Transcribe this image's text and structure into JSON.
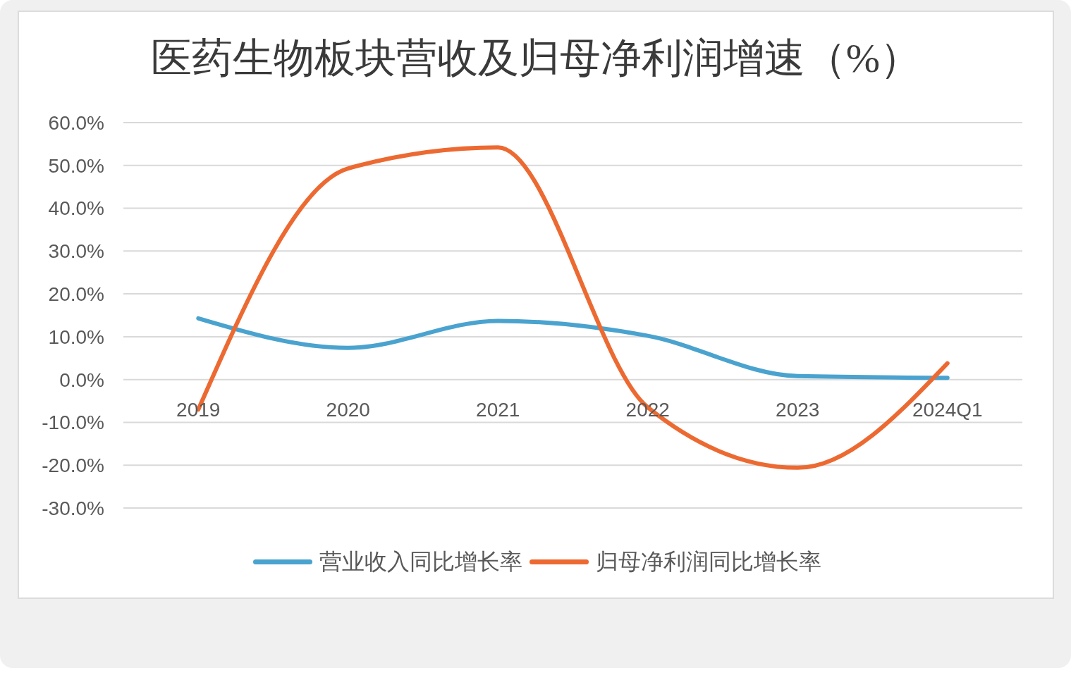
{
  "chart_data": {
    "type": "line",
    "title": "医药生物板块营收及归母净利润增速（%）",
    "categories": [
      "2019",
      "2020",
      "2021",
      "2022",
      "2023",
      "2024Q1"
    ],
    "series": [
      {
        "name": "营业收入同比增长率",
        "color": "#4aa3cf",
        "values": [
          14.3,
          7.4,
          13.7,
          10.2,
          0.8,
          0.4
        ]
      },
      {
        "name": "归母净利润同比增长率",
        "color": "#ec6a32",
        "values": [
          -7.0,
          49.3,
          54.2,
          -6.5,
          -20.6,
          3.8
        ]
      }
    ],
    "ylim": [
      -30,
      60
    ],
    "yticks": [
      {
        "value": -30,
        "label": "-30.0%"
      },
      {
        "value": -20,
        "label": "-20.0%"
      },
      {
        "value": -10,
        "label": "-10.0%"
      },
      {
        "value": 0,
        "label": "0.0%"
      },
      {
        "value": 10,
        "label": "10.0%"
      },
      {
        "value": 20,
        "label": "20.0%"
      },
      {
        "value": 30,
        "label": "30.0%"
      },
      {
        "value": 40,
        "label": "40.0%"
      },
      {
        "value": 50,
        "label": "50.0%"
      },
      {
        "value": 60,
        "label": "60.0%"
      }
    ],
    "grid": "y",
    "legend": "bottom",
    "marker": "none",
    "line_style": "solid"
  }
}
